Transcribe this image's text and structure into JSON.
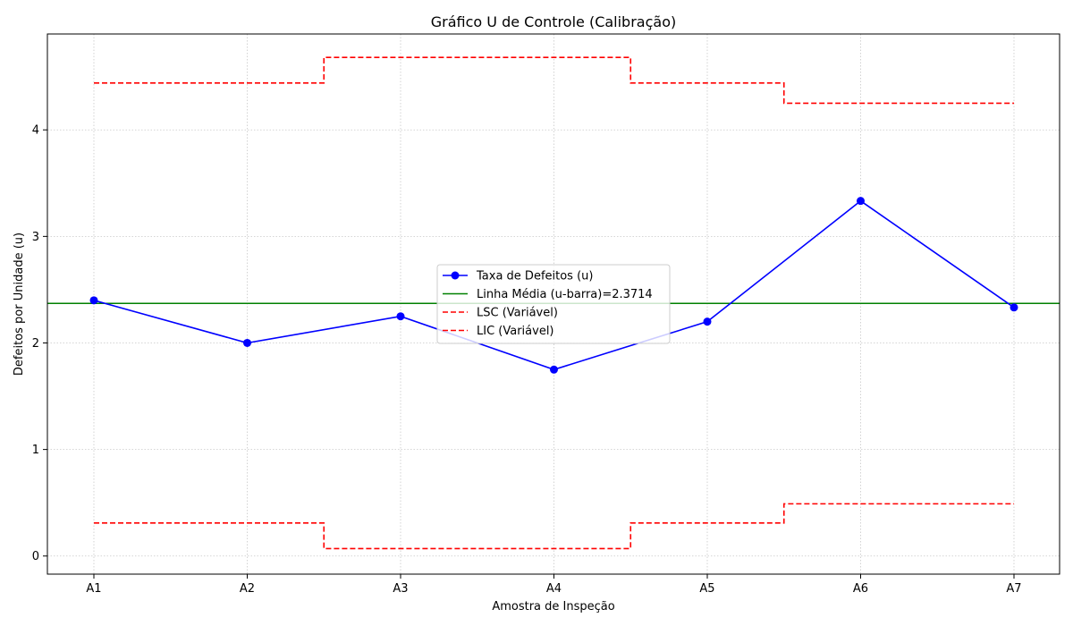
{
  "chart_data": {
    "type": "line",
    "title": "Gráfico U de Controle (Calibração)",
    "xlabel": "Amostra de Inspeção",
    "ylabel": "Defeitos por Unidade (u)",
    "categories": [
      "A1",
      "A2",
      "A3",
      "A4",
      "A5",
      "A6",
      "A7"
    ],
    "yticks": [
      0,
      1,
      2,
      3,
      4
    ],
    "ylim": [
      -0.17,
      4.9
    ],
    "grid": true,
    "legend_position": "center",
    "series": [
      {
        "name": "Taxa de Defeitos (u)",
        "values": [
          2.4,
          2.0,
          2.25,
          1.75,
          2.2,
          3.333,
          2.333
        ],
        "color": "#0000ff",
        "style": "line-marker"
      },
      {
        "name": "Linha Média (u-barra)=2.3714",
        "value": 2.3714,
        "color": "#008000",
        "style": "solid"
      },
      {
        "name": "LSC (Variável)",
        "values": [
          4.44,
          4.44,
          4.68,
          4.68,
          4.44,
          4.25,
          4.25
        ],
        "color": "#ff0000",
        "style": "dashed-step"
      },
      {
        "name": "LIC (Variável)",
        "values": [
          0.31,
          0.31,
          0.07,
          0.07,
          0.31,
          0.49,
          0.49
        ],
        "color": "#ff0000",
        "style": "dashed-step"
      }
    ]
  }
}
